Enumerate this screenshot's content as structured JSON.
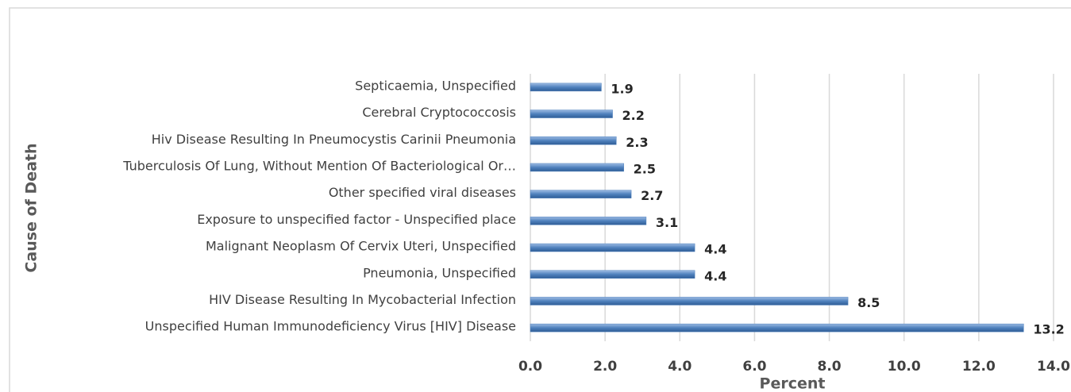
{
  "chart_data": {
    "type": "bar",
    "orientation": "horizontal",
    "x_label": "Percent",
    "y_label": "Cause of Death",
    "categories": [
      "Septicaemia, Unspecified",
      "Cerebral Cryptococcosis",
      "Hiv Disease Resulting In Pneumocystis Carinii Pneumonia",
      "Tuberculosis Of Lung, Without Mention Of Bacteriological Or…",
      "Other specified viral diseases",
      "Exposure to unspecified factor - Unspecified place",
      "Malignant Neoplasm Of Cervix Uteri, Unspecified",
      "Pneumonia, Unspecified",
      "HIV Disease Resulting In Mycobacterial Infection",
      "Unspecified Human Immunodeficiency Virus [HIV] Disease"
    ],
    "values": [
      1.9,
      2.2,
      2.3,
      2.5,
      2.7,
      3.1,
      4.4,
      4.4,
      8.5,
      13.2
    ],
    "color": "#4f81bd",
    "xlim": [
      0,
      14
    ],
    "xticks": [
      {
        "value": 0,
        "label": "0.0"
      },
      {
        "value": 2,
        "label": "2.0"
      },
      {
        "value": 4,
        "label": "4.0"
      },
      {
        "value": 6,
        "label": "6.0"
      },
      {
        "value": 8,
        "label": "8.0"
      },
      {
        "value": 10,
        "label": "10.0"
      },
      {
        "value": 12,
        "label": "12.0"
      },
      {
        "value": 14,
        "label": "14.0"
      }
    ],
    "grid": true
  }
}
